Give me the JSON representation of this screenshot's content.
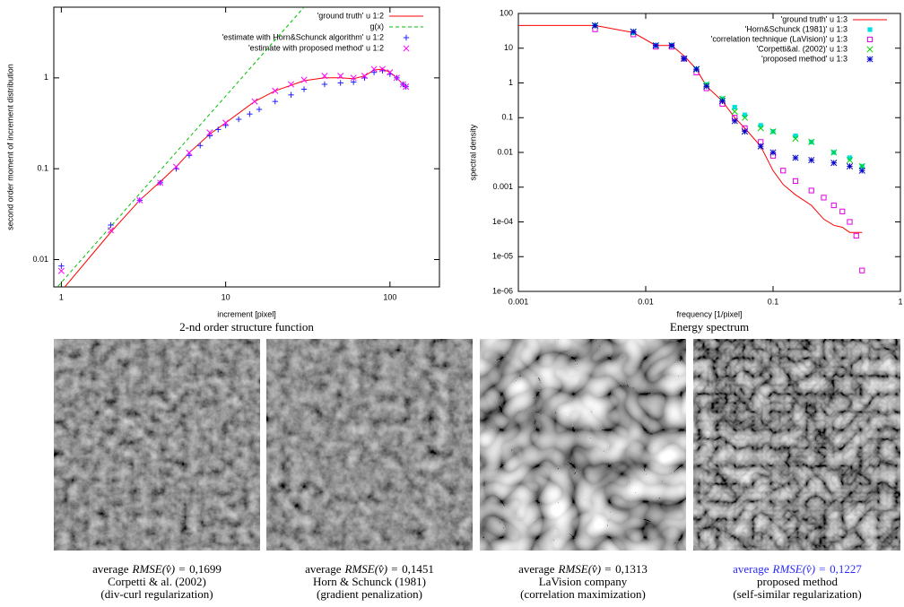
{
  "chart_data": [
    {
      "type": "line",
      "caption": "2-nd order structure function",
      "xlabel": "increment [pixel]",
      "ylabel": "second order moment of increment distribution",
      "xscale": "log",
      "yscale": "log",
      "xlim": [
        0.9,
        200
      ],
      "ylim": [
        0.005,
        6
      ],
      "xticks": [
        1,
        10,
        100
      ],
      "yticks": [
        0.01,
        0.1,
        1
      ],
      "legend": "top-right",
      "series": [
        {
          "name": "'ground truth' u 1:2",
          "color": "#ff0000",
          "style": "line",
          "x": [
            1,
            2,
            3,
            4,
            5,
            6,
            8,
            10,
            15,
            20,
            30,
            40,
            50,
            60,
            70,
            80,
            90,
            100,
            110,
            120,
            125
          ],
          "values": [
            0.0045,
            0.02,
            0.045,
            0.072,
            0.105,
            0.15,
            0.24,
            0.32,
            0.55,
            0.72,
            0.93,
            1.0,
            1.0,
            0.98,
            1.05,
            1.22,
            1.25,
            1.15,
            1.0,
            0.85,
            0.8
          ]
        },
        {
          "name": "g(x)",
          "color": "#00c000",
          "style": "dashed",
          "x": [
            0.9,
            30
          ],
          "values": [
            0.0045,
            6
          ]
        },
        {
          "name": "'estimate with Horn&Schunck algorithm' u 1:2",
          "color": "#2020ff",
          "style": "points",
          "marker": "plus",
          "x": [
            1,
            2,
            3,
            4,
            5,
            6,
            7,
            8,
            9,
            10,
            12,
            14,
            16,
            20,
            25,
            30,
            40,
            50,
            60,
            70,
            80,
            90,
            100,
            110,
            120,
            125
          ],
          "values": [
            0.0085,
            0.024,
            0.045,
            0.07,
            0.1,
            0.14,
            0.18,
            0.23,
            0.27,
            0.3,
            0.35,
            0.4,
            0.45,
            0.55,
            0.65,
            0.75,
            0.85,
            0.88,
            0.9,
            1.0,
            1.15,
            1.2,
            1.1,
            1.0,
            0.85,
            0.8
          ]
        },
        {
          "name": "'estimate with proposed method' u 1:2",
          "color": "#ff00ff",
          "style": "points",
          "marker": "cross",
          "x": [
            1,
            2,
            3,
            4,
            5,
            6,
            8,
            10,
            15,
            20,
            25,
            30,
            40,
            50,
            60,
            70,
            80,
            90,
            100,
            110,
            120,
            125
          ],
          "values": [
            0.0075,
            0.021,
            0.045,
            0.07,
            0.105,
            0.15,
            0.25,
            0.32,
            0.55,
            0.72,
            0.85,
            0.95,
            1.05,
            1.05,
            1.0,
            1.05,
            1.25,
            1.25,
            1.15,
            1.0,
            0.85,
            0.8
          ]
        }
      ]
    },
    {
      "type": "line",
      "caption": "Energy spectrum",
      "xlabel": "frequency [1/pixel]",
      "ylabel": "spectral density",
      "xscale": "log",
      "yscale": "log",
      "xlim": [
        0.001,
        1
      ],
      "ylim": [
        1e-06,
        100
      ],
      "xticks": [
        0.001,
        0.01,
        0.1,
        1
      ],
      "yticks": [
        100,
        10,
        1,
        0.1,
        0.01,
        0.001,
        {
          "value": 0.0001,
          "label": "1e-04"
        },
        {
          "value": 1e-05,
          "label": "1e-05"
        },
        {
          "value": 1e-06,
          "label": "1e-06"
        }
      ],
      "legend": "top-right",
      "series": [
        {
          "name": "'ground truth' u 1:3",
          "color": "#ff0000",
          "style": "line",
          "x": [
            0.001,
            0.004,
            0.008,
            0.012,
            0.016,
            0.02,
            0.025,
            0.03,
            0.04,
            0.05,
            0.06,
            0.08,
            0.1,
            0.12,
            0.15,
            0.2,
            0.25,
            0.3,
            0.35,
            0.4,
            0.5
          ],
          "values": [
            45,
            45,
            28,
            12,
            12,
            6,
            2.5,
            0.8,
            0.3,
            0.1,
            0.05,
            0.015,
            0.003,
            0.0012,
            0.0006,
            0.0003,
            0.00012,
            8e-05,
            7e-05,
            5e-05,
            5e-05
          ]
        },
        {
          "name": "'Horn&Schunck (1981)' u 1:3",
          "color": "#00e0e0",
          "style": "points",
          "marker": "square",
          "x": [
            0.004,
            0.008,
            0.012,
            0.016,
            0.02,
            0.025,
            0.03,
            0.04,
            0.05,
            0.06,
            0.08,
            0.1,
            0.15,
            0.2,
            0.3,
            0.4,
            0.5
          ],
          "values": [
            45,
            28,
            12,
            12,
            5,
            2.5,
            0.9,
            0.35,
            0.2,
            0.12,
            0.06,
            0.04,
            0.03,
            0.02,
            0.01,
            0.007,
            0.004
          ]
        },
        {
          "name": "'correlation technique (LaVision)' u 1:3",
          "color": "#e000e0",
          "style": "points",
          "marker": "open-square",
          "x": [
            0.004,
            0.008,
            0.012,
            0.016,
            0.02,
            0.025,
            0.03,
            0.04,
            0.05,
            0.06,
            0.08,
            0.1,
            0.12,
            0.15,
            0.2,
            0.25,
            0.3,
            0.35,
            0.4,
            0.45,
            0.5
          ],
          "values": [
            35,
            25,
            11,
            11,
            5,
            2,
            0.7,
            0.25,
            0.1,
            0.05,
            0.02,
            0.008,
            0.003,
            0.0015,
            0.0008,
            0.0005,
            0.0003,
            0.0002,
            0.0001,
            4e-05,
            4e-06
          ]
        },
        {
          "name": "'Corpetti&al. (2002)' u 1:3",
          "color": "#00d000",
          "style": "points",
          "marker": "cross",
          "x": [
            0.004,
            0.008,
            0.012,
            0.016,
            0.02,
            0.025,
            0.03,
            0.04,
            0.05,
            0.06,
            0.08,
            0.1,
            0.15,
            0.2,
            0.3,
            0.4,
            0.5
          ],
          "values": [
            45,
            30,
            12,
            12,
            5,
            2.5,
            0.9,
            0.35,
            0.15,
            0.1,
            0.05,
            0.04,
            0.025,
            0.02,
            0.01,
            0.006,
            0.004
          ]
        },
        {
          "name": "'proposed method' u 1:3",
          "color": "#0000cc",
          "style": "points",
          "marker": "star",
          "x": [
            0.004,
            0.008,
            0.012,
            0.016,
            0.02,
            0.025,
            0.03,
            0.04,
            0.05,
            0.06,
            0.08,
            0.1,
            0.15,
            0.2,
            0.3,
            0.4,
            0.5
          ],
          "values": [
            45,
            30,
            12,
            12,
            5,
            2.5,
            0.8,
            0.3,
            0.08,
            0.04,
            0.015,
            0.01,
            0.007,
            0.006,
            0.005,
            0.004,
            0.003
          ]
        }
      ]
    }
  ],
  "panels": [
    {
      "prefix": "average",
      "metric": "RMSE(v̂) =",
      "value": "0,1699",
      "line2": "Corpetti & al. (2002)",
      "line3": "(div-curl regularization)"
    },
    {
      "prefix": "average",
      "metric": "RMSE(v̂) =",
      "value": "0,1451",
      "line2": "Horn & Schunck (1981)",
      "line3": "(gradient penalization)"
    },
    {
      "prefix": "average",
      "metric": "RMSE(v̂) =",
      "value": "0,1313",
      "line2": "LaVision company",
      "line3": "(correlation maximization)"
    },
    {
      "prefix": "average",
      "metric": "RMSE(v̂) =",
      "value": "0,1227",
      "line2": "proposed method",
      "line3": "(self-similar regularization)",
      "color": "#2a2aff"
    }
  ]
}
